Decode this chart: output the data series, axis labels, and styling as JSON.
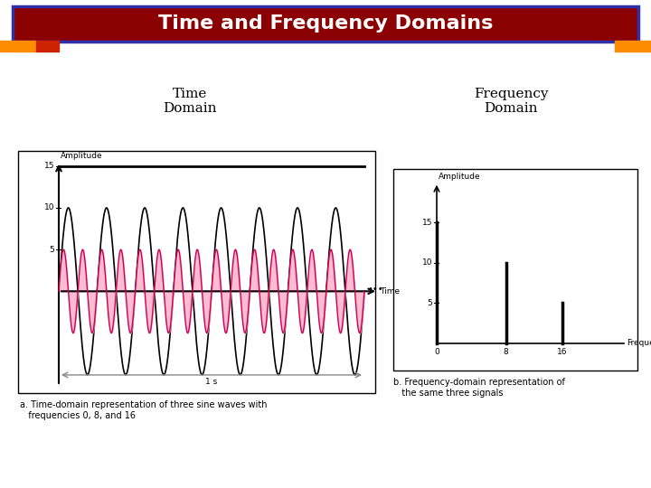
{
  "title": "Time and Frequency Domains",
  "title_bg": "#8B0000",
  "title_text_color": "#FFFFFF",
  "title_border_color": "#3030AA",
  "time_domain_label": "Time\nDomain",
  "freq_domain_label": "Frequency\nDomain",
  "caption_a": "a. Time-domain representation of three sine waves with\n   frequencies 0, 8, and 16",
  "caption_b": "b. Frequency-domain representation of\n   the same three signals",
  "caption_b_color": "#000000",
  "bg_color": "#FFFFFF",
  "stripe_orange": "#FF8C00",
  "stripe_red": "#FF3300"
}
